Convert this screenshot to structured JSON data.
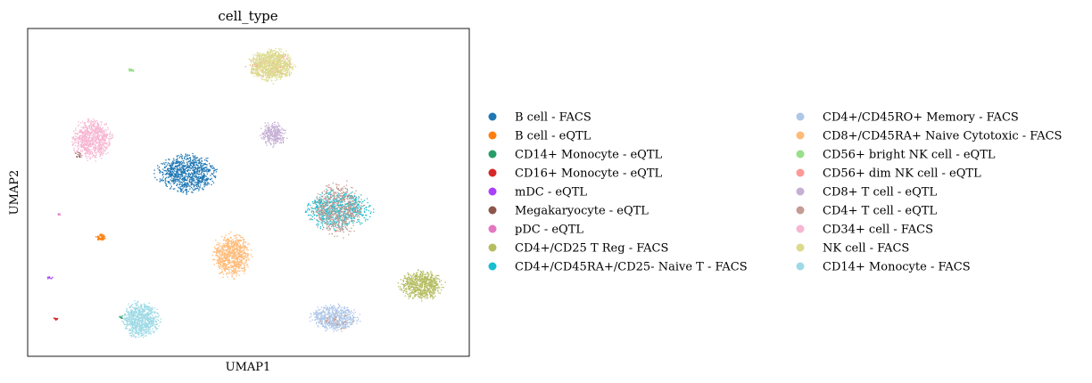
{
  "chart_data": {
    "type": "scatter",
    "title": "cell_type",
    "xlabel": "UMAP1",
    "ylabel": "UMAP2",
    "xlim": [
      0,
      100
    ],
    "ylim": [
      0,
      100
    ],
    "grid": false,
    "ticks": false,
    "legend_position": "right",
    "legend_columns": 2,
    "series": [
      {
        "name": "B cell - FACS",
        "color": "#1f77b4",
        "clusters": [
          {
            "x": 36,
            "y": 56,
            "rx": 7.5,
            "ry": 6.5,
            "n": 900
          }
        ]
      },
      {
        "name": "B cell - eQTL",
        "color": "#ff7f0e",
        "clusters": [
          {
            "x": 16.5,
            "y": 36.5,
            "rx": 1.2,
            "ry": 1.4,
            "n": 60
          }
        ]
      },
      {
        "name": "CD14+ Monocyte - eQTL",
        "color": "#279e68",
        "clusters": [
          {
            "x": 21,
            "y": 12,
            "rx": 0.5,
            "ry": 0.8,
            "n": 8
          }
        ]
      },
      {
        "name": "CD16+ Monocyte - eQTL",
        "color": "#d62728",
        "clusters": [
          {
            "x": 6.2,
            "y": 11.5,
            "rx": 0.6,
            "ry": 0.5,
            "n": 14
          }
        ]
      },
      {
        "name": "mDC - eQTL",
        "color": "#aa40fc",
        "clusters": [
          {
            "x": 5,
            "y": 24,
            "rx": 0.8,
            "ry": 0.6,
            "n": 14
          }
        ]
      },
      {
        "name": "Megakaryocyte - eQTL",
        "color": "#8c564b",
        "clusters": [
          {
            "x": 11.5,
            "y": 61.5,
            "rx": 1.0,
            "ry": 1.0,
            "n": 14
          }
        ]
      },
      {
        "name": "pDC - eQTL",
        "color": "#e377c2",
        "clusters": [
          {
            "x": 7,
            "y": 43.5,
            "rx": 0.4,
            "ry": 0.3,
            "n": 5
          }
        ]
      },
      {
        "name": "CD4+/CD25 T Reg - FACS",
        "color": "#b5bd61",
        "clusters": [
          {
            "x": 89,
            "y": 22,
            "rx": 5.5,
            "ry": 5.0,
            "n": 700
          }
        ]
      },
      {
        "name": "CD4+/CD45RA+/CD25- Naive T - FACS",
        "color": "#17becf",
        "clusters": [
          {
            "x": 70,
            "y": 45,
            "rx": 8.5,
            "ry": 6.5,
            "n": 700
          }
        ]
      },
      {
        "name": "CD4+/CD45RO+ Memory - FACS",
        "color": "#aec7e8",
        "clusters": [
          {
            "x": 69.5,
            "y": 12,
            "rx": 6.0,
            "ry": 4.5,
            "n": 600
          }
        ]
      },
      {
        "name": "CD8+/CD45RA+ Naive Cytotoxic - FACS",
        "color": "#ffbb78",
        "clusters": [
          {
            "x": 46,
            "y": 31,
            "rx": 4.8,
            "ry": 7.5,
            "n": 800
          }
        ]
      },
      {
        "name": "CD56+ bright NK cell - eQTL",
        "color": "#98df8a",
        "clusters": [
          {
            "x": 23.5,
            "y": 87.5,
            "rx": 1.0,
            "ry": 0.7,
            "n": 25
          }
        ]
      },
      {
        "name": "CD56+ dim NK cell - eQTL",
        "color": "#ff9896",
        "clusters": [
          {
            "x": 55,
            "y": 89,
            "rx": 5.5,
            "ry": 4.5,
            "n": 160
          }
        ]
      },
      {
        "name": "CD8+ T cell - eQTL",
        "color": "#c5b0d5",
        "clusters": [
          {
            "x": 55.5,
            "y": 68,
            "rx": 3.3,
            "ry": 4.2,
            "n": 300
          }
        ]
      },
      {
        "name": "CD4+ T cell - eQTL",
        "color": "#c49c94",
        "clusters": [
          {
            "x": 70,
            "y": 45,
            "rx": 6.5,
            "ry": 9.0,
            "n": 600
          },
          {
            "x": 70,
            "y": 11,
            "rx": 4.0,
            "ry": 3.0,
            "n": 40
          }
        ]
      },
      {
        "name": "CD34+ cell - FACS",
        "color": "#f7b6d2",
        "clusters": [
          {
            "x": 14.5,
            "y": 66.5,
            "rx": 5.2,
            "ry": 7.0,
            "n": 800
          }
        ]
      },
      {
        "name": "NK cell - FACS",
        "color": "#dbdb8d",
        "clusters": [
          {
            "x": 55,
            "y": 89,
            "rx": 5.8,
            "ry": 5.5,
            "n": 900
          }
        ]
      },
      {
        "name": "CD14+ Monocyte - FACS",
        "color": "#9edae5",
        "clusters": [
          {
            "x": 25.5,
            "y": 11.5,
            "rx": 4.7,
            "ry": 6.0,
            "n": 800
          }
        ]
      }
    ]
  }
}
